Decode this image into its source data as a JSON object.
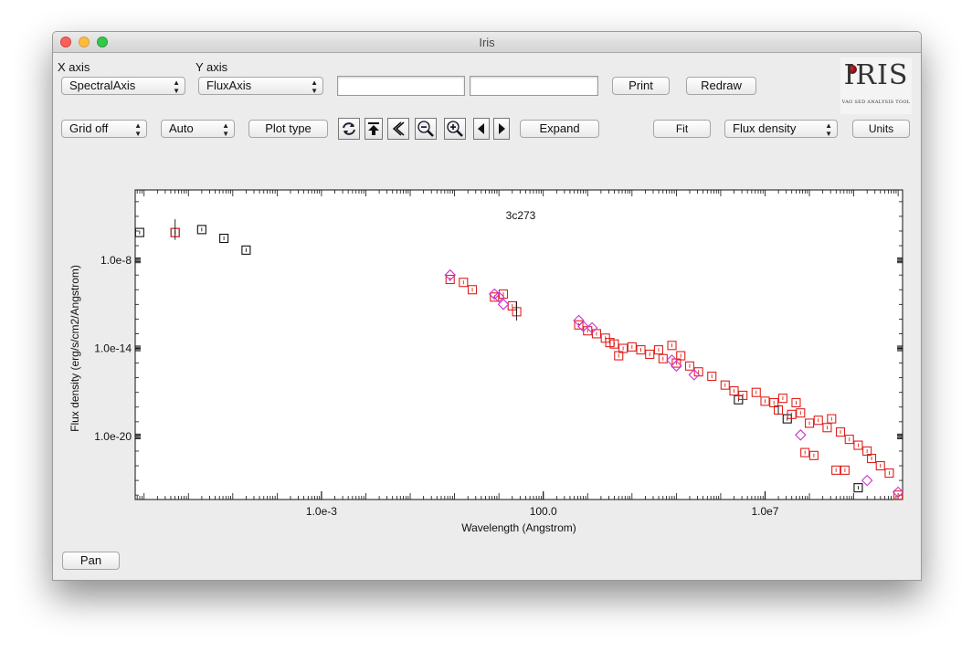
{
  "window": {
    "title": "Iris"
  },
  "axes": {
    "x_label": "X axis",
    "x_value": "SpectralAxis",
    "y_label": "Y axis",
    "y_value": "FluxAxis"
  },
  "toolbar1": {
    "print": "Print",
    "redraw": "Redraw",
    "field1": "",
    "field2": ""
  },
  "logo": {
    "big": "IRIS",
    "small": "VAO SED ANALYSIS TOOL"
  },
  "toolbar2": {
    "grid": "Grid off",
    "auto": "Auto",
    "plot_type": "Plot type",
    "expand": "Expand",
    "fit": "Fit",
    "flux_type": "Flux density",
    "units": "Units"
  },
  "icons": [
    "refresh-icon",
    "top-icon",
    "back-icon",
    "zoom-out-icon",
    "zoom-in-icon",
    "left-arrow-icon",
    "right-arrow-icon"
  ],
  "bottom": {
    "pan": "Pan"
  },
  "colors": {
    "red": "#e0201c",
    "magenta": "#cc33cc",
    "black": "#111111"
  },
  "chart_data": {
    "type": "scatter",
    "title": "3c273",
    "xlabel": "Wavelength (Angstrom)",
    "ylabel": "Flux density (erg/s/cm2/Angstrom)",
    "xscale": "log",
    "yscale": "log",
    "xlim_log10": [
      -7.2,
      10.1
    ],
    "ylim_log10": [
      -24.3,
      -3.2
    ],
    "x_ticks": [
      {
        "log": -3,
        "label": "1.0e-3"
      },
      {
        "log": 2,
        "label": "100.0"
      },
      {
        "log": 7,
        "label": "1.0e7"
      }
    ],
    "y_ticks": [
      {
        "log": -8,
        "label": "1.0e-8"
      },
      {
        "log": -14,
        "label": "1.0e-14"
      },
      {
        "log": -20,
        "label": "1.0e-20"
      }
    ],
    "grid": false,
    "series": [
      {
        "marker": "square",
        "color": "black",
        "points": [
          [
            -7.1,
            -6.1
          ],
          [
            -6.3,
            -6.1
          ],
          [
            -5.7,
            -5.9
          ],
          [
            -5.2,
            -6.5
          ],
          [
            -4.7,
            -7.3
          ],
          [
            6.4,
            -17.5
          ],
          [
            7.5,
            -18.8
          ],
          [
            9.1,
            -23.5
          ]
        ]
      },
      {
        "marker": "square",
        "color": "red",
        "points": [
          [
            -6.3,
            -6.1
          ],
          [
            -0.1,
            -9.3
          ],
          [
            0.2,
            -9.5
          ],
          [
            0.4,
            -10.0
          ],
          [
            0.9,
            -10.5
          ],
          [
            1.1,
            -10.3
          ],
          [
            1.3,
            -11.1
          ],
          [
            1.4,
            -11.5
          ],
          [
            2.8,
            -12.4
          ],
          [
            3.0,
            -12.8
          ],
          [
            3.2,
            -13.0
          ],
          [
            3.4,
            -13.3
          ],
          [
            3.5,
            -13.6
          ],
          [
            3.6,
            -13.7
          ],
          [
            3.8,
            -14.0
          ],
          [
            3.7,
            -14.5
          ],
          [
            4.0,
            -13.9
          ],
          [
            4.2,
            -14.1
          ],
          [
            4.4,
            -14.4
          ],
          [
            4.6,
            -14.1
          ],
          [
            4.7,
            -14.7
          ],
          [
            4.9,
            -13.8
          ],
          [
            5.0,
            -15.0
          ],
          [
            5.1,
            -14.5
          ],
          [
            5.3,
            -15.2
          ],
          [
            5.5,
            -15.6
          ],
          [
            5.8,
            -15.9
          ],
          [
            6.1,
            -16.5
          ],
          [
            6.3,
            -16.9
          ],
          [
            6.5,
            -17.2
          ],
          [
            6.8,
            -17.0
          ],
          [
            7.0,
            -17.6
          ],
          [
            7.2,
            -17.7
          ],
          [
            7.4,
            -17.4
          ],
          [
            7.7,
            -17.7
          ],
          [
            7.8,
            -18.4
          ],
          [
            8.0,
            -19.1
          ],
          [
            8.2,
            -18.9
          ],
          [
            8.4,
            -19.4
          ],
          [
            8.5,
            -18.8
          ],
          [
            8.7,
            -19.7
          ],
          [
            8.9,
            -20.2
          ],
          [
            9.1,
            -20.6
          ],
          [
            9.3,
            -21.0
          ],
          [
            9.4,
            -21.5
          ],
          [
            9.6,
            -22.0
          ],
          [
            9.8,
            -22.5
          ],
          [
            10.0,
            -24.0
          ],
          [
            7.9,
            -21.1
          ],
          [
            8.1,
            -21.3
          ],
          [
            8.6,
            -22.3
          ],
          [
            8.8,
            -22.3
          ],
          [
            7.3,
            -18.2
          ],
          [
            7.6,
            -18.5
          ]
        ]
      },
      {
        "marker": "diamond",
        "color": "magenta",
        "points": [
          [
            -0.1,
            -9.0
          ],
          [
            0.9,
            -10.3
          ],
          [
            1.0,
            -10.5
          ],
          [
            1.1,
            -11.0
          ],
          [
            2.8,
            -12.1
          ],
          [
            2.9,
            -12.5
          ],
          [
            3.1,
            -12.6
          ],
          [
            4.9,
            -14.8
          ],
          [
            5.0,
            -15.2
          ],
          [
            5.4,
            -15.8
          ],
          [
            7.8,
            -19.9
          ],
          [
            9.3,
            -23.0
          ],
          [
            10.0,
            -23.8
          ]
        ]
      }
    ]
  }
}
